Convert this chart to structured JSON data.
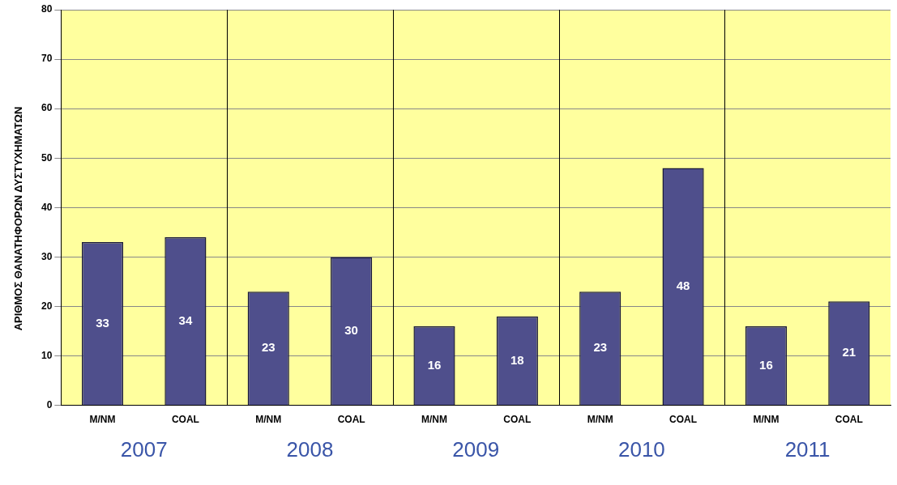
{
  "chart_data": {
    "type": "bar",
    "ylabel": "ΑΡΙΘΜΟΣ ΘΑΝΑΤΗΦΟΡΩΝ ΔΥΣΤΥΧΗΜΑΤΩΝ",
    "categories": [
      "M/NM",
      "COAL",
      "M/NM",
      "COAL",
      "M/NM",
      "COAL",
      "M/NM",
      "COAL",
      "M/NM",
      "COAL"
    ],
    "values": [
      33,
      34,
      23,
      30,
      16,
      18,
      23,
      48,
      16,
      21
    ],
    "color": "#4f4f8c",
    "ylim": [
      0,
      80
    ],
    "yticks": [
      0,
      10,
      20,
      30,
      40,
      50,
      60,
      70,
      80
    ],
    "grid": "y",
    "data_labels": true,
    "annotations": [
      "2007",
      "2008",
      "2009",
      "2010",
      "2011"
    ]
  }
}
